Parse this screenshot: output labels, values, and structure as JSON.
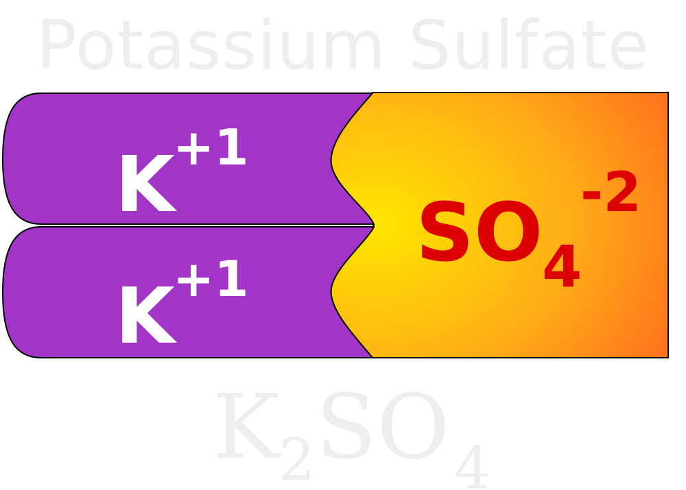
{
  "title": "Potassium Sulfate",
  "cation": {
    "symbol": "K",
    "charge": "+1",
    "count": 2,
    "color": "#a334c8",
    "text_color": "#ffffff"
  },
  "anion": {
    "symbol": "SO",
    "subscript": "4",
    "charge": "-2",
    "text_color": "#dd0000",
    "gradient_inner": "#ffe600",
    "gradient_outer": "#ff6a1f"
  },
  "formula": {
    "element_1": "K",
    "subscript_1": "2",
    "element_2": "SO",
    "subscript_2": "4",
    "color": "#eeeeee"
  }
}
